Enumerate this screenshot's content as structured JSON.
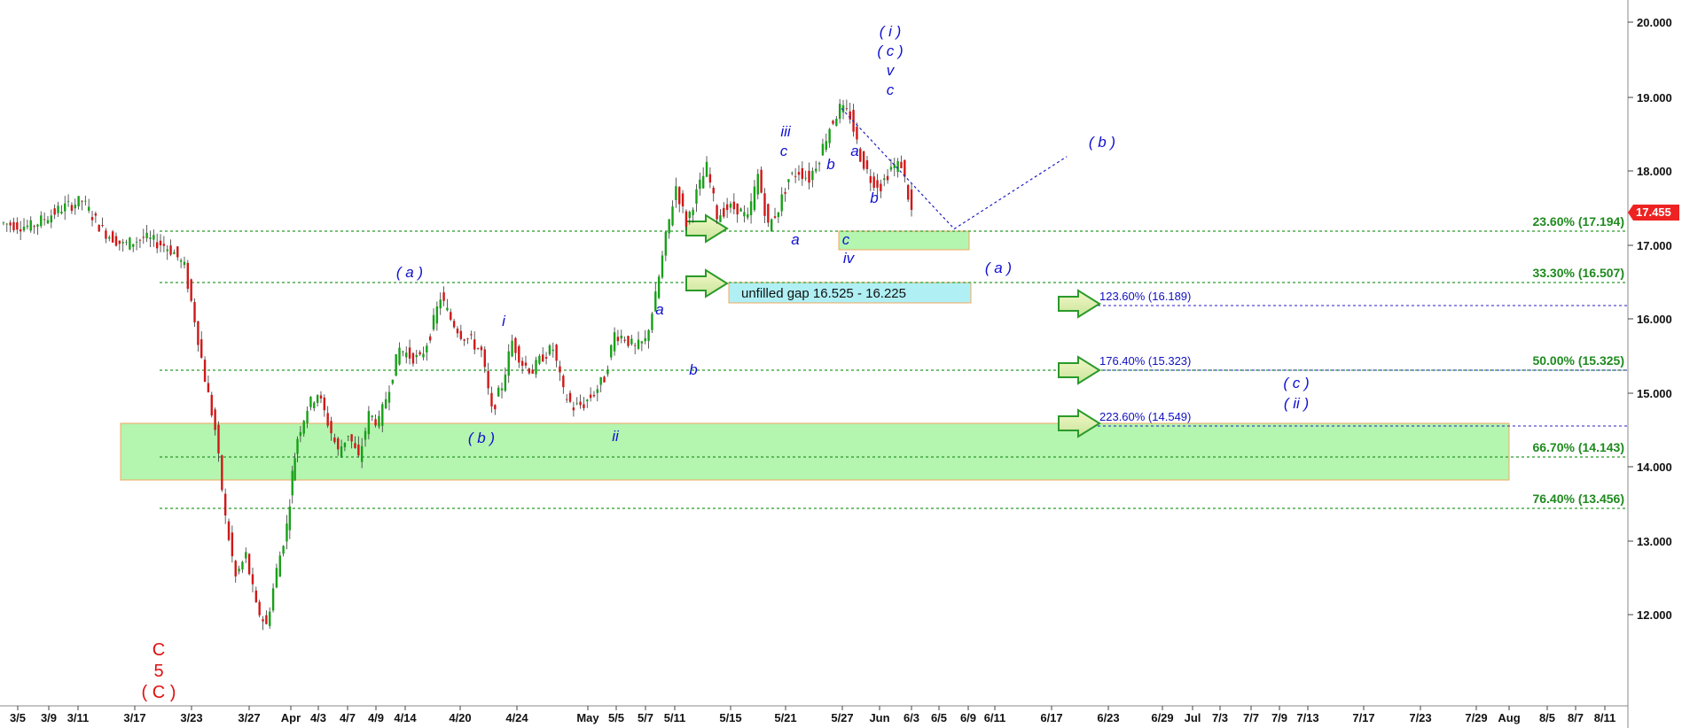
{
  "chart_data": {
    "type": "candlestick",
    "y_ticks": [
      "20.000",
      "19.000",
      "18.000",
      "17.000",
      "16.000",
      "15.000",
      "14.000",
      "13.000",
      "12.000"
    ],
    "ylim": [
      10.8,
      20.35
    ],
    "x_ticks": [
      "3/5",
      "3/9",
      "3/11",
      "3/17",
      "3/23",
      "3/27",
      "Apr",
      "4/3",
      "4/7",
      "4/9",
      "4/14",
      "4/20",
      "4/24",
      "May",
      "5/5",
      "5/7",
      "5/11",
      "5/15",
      "5/21",
      "5/27",
      "Jun",
      "6/3",
      "6/5",
      "6/9",
      "6/11",
      "6/17",
      "6/23",
      "6/29",
      "Jul",
      "7/3",
      "7/7",
      "7/9",
      "7/13",
      "7/17",
      "7/23",
      "7/29",
      "Aug",
      "8/5",
      "8/7",
      "8/11"
    ],
    "last_price": "17.455",
    "fib_retracements": [
      {
        "label": "23.60% (17.194)",
        "value": 17.194
      },
      {
        "label": "33.30% (16.507)",
        "value": 16.507
      },
      {
        "label": "50.00% (15.325)",
        "value": 15.325
      },
      {
        "label": "66.70% (14.143)",
        "value": 14.143
      },
      {
        "label": "76.40% (13.456)",
        "value": 13.456
      }
    ],
    "fib_extensions": [
      {
        "label": "123.60% (16.189)",
        "value": 16.189
      },
      {
        "label": "176.40% (15.323)",
        "value": 15.323
      },
      {
        "label": "223.60% (14.549)",
        "value": 14.549
      }
    ],
    "gap_label": "unfilled gap 16.525 - 16.225",
    "gap": [
      16.225,
      16.525
    ],
    "support_zone": [
      13.8,
      14.6
    ],
    "small_zone": [
      16.98,
      17.22
    ],
    "price_path": [
      [
        0,
        17.3
      ],
      [
        3,
        17.25
      ],
      [
        6,
        17.5
      ],
      [
        8,
        17.6
      ],
      [
        10,
        17.2
      ],
      [
        12,
        17.0
      ],
      [
        14,
        17.1
      ],
      [
        16,
        17.0
      ],
      [
        17,
        16.9
      ],
      [
        18,
        16.7
      ],
      [
        19,
        16.0
      ],
      [
        20,
        15.2
      ],
      [
        21,
        14.5
      ],
      [
        22,
        13.3
      ],
      [
        23,
        12.5
      ],
      [
        24,
        12.8
      ],
      [
        25,
        12.1
      ],
      [
        26,
        11.85
      ],
      [
        27,
        12.6
      ],
      [
        28,
        13.2
      ],
      [
        28.5,
        13.9
      ],
      [
        29,
        14.4
      ],
      [
        30,
        14.8
      ],
      [
        31,
        15.0
      ],
      [
        32,
        14.6
      ],
      [
        33,
        14.2
      ],
      [
        34,
        14.45
      ],
      [
        35,
        14.1
      ],
      [
        36,
        14.7
      ],
      [
        37,
        14.6
      ],
      [
        38,
        15.1
      ],
      [
        39,
        15.6
      ],
      [
        40,
        15.5
      ],
      [
        41,
        15.45
      ],
      [
        42,
        15.8
      ],
      [
        43,
        16.3
      ],
      [
        44,
        16.0
      ],
      [
        45,
        15.8
      ],
      [
        46,
        15.7
      ],
      [
        47,
        15.55
      ],
      [
        48,
        14.75
      ],
      [
        49,
        15.1
      ],
      [
        50,
        15.7
      ],
      [
        51,
        15.4
      ],
      [
        52,
        15.3
      ],
      [
        53,
        15.5
      ],
      [
        54,
        15.6
      ],
      [
        55,
        15.0
      ],
      [
        56,
        14.8
      ],
      [
        57,
        14.85
      ],
      [
        58,
        15.0
      ],
      [
        59,
        15.2
      ],
      [
        60,
        15.8
      ],
      [
        61,
        15.75
      ],
      [
        62,
        15.6
      ],
      [
        63,
        15.7
      ],
      [
        64,
        16.3
      ],
      [
        65,
        17.1
      ],
      [
        66,
        17.8
      ],
      [
        67,
        17.3
      ],
      [
        68,
        17.7
      ],
      [
        69,
        18.05
      ],
      [
        70,
        17.4
      ],
      [
        71,
        17.5
      ],
      [
        72,
        17.5
      ],
      [
        73,
        17.35
      ],
      [
        74,
        17.95
      ],
      [
        75,
        17.25
      ],
      [
        76,
        17.5
      ],
      [
        77,
        17.9
      ],
      [
        78,
        18.0
      ],
      [
        79,
        17.9
      ],
      [
        80,
        18.2
      ],
      [
        81,
        18.6
      ],
      [
        82,
        18.85
      ],
      [
        83,
        18.75
      ],
      [
        84,
        18.2
      ],
      [
        85,
        17.9
      ],
      [
        86,
        17.8
      ],
      [
        87,
        18.05
      ],
      [
        88,
        18.1
      ],
      [
        89,
        17.45
      ]
    ],
    "projection": [
      {
        "x": 82,
        "y": 18.85
      },
      {
        "x": 93,
        "y": 17.22
      },
      {
        "x": 104,
        "y": 18.2
      }
    ]
  },
  "wave_labels": {
    "a_paren_1": "( a )",
    "b_paren_1": "( b )",
    "i_roman": "i",
    "ii_roman": "ii",
    "a_small_1": "a",
    "b_small_1": "b",
    "iii_roman": "iii",
    "c_small_1": "c",
    "a_small_2": "a",
    "b_small_2": "b",
    "c_small_2": "c",
    "iv_roman": "iv",
    "a_small_3": "a",
    "b_small_3": "b",
    "top_i": "( i )",
    "top_c": "( c )",
    "top_v": "v",
    "top_c2": "c",
    "proj_b": "( b )",
    "proj_a": "( a )",
    "proj_c": "( c )",
    "proj_ii": "( ii )",
    "red_c": "C",
    "red_5": "5",
    "red_c_paren": "( C )"
  },
  "colors": {
    "fib_line": "#2a9a2a",
    "ext_line": "#2020c0",
    "zone_fill": "#b4f5b0",
    "gap_fill": "#b0f0f4",
    "price_tag": "#ee2222",
    "wave_label": "#1010d0",
    "red_label": "#e01010"
  }
}
